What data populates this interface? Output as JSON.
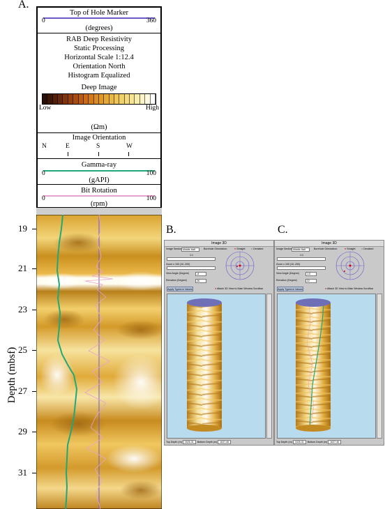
{
  "panel_a": {
    "letter": "A.",
    "top_of_hole": {
      "title": "Top of Hole Marker",
      "min": "0",
      "max": "360",
      "unit": "(degrees)"
    },
    "image_info": {
      "lines": [
        "RAB Deep Resistivity",
        "Static Processing",
        "Horizontal Scale 1:12.4",
        "Orientation North",
        "Histogram Equalized"
      ]
    },
    "deep_image": {
      "title": "Deep Image",
      "low": "Low",
      "high": "High",
      "unit": "(Ωm)"
    },
    "orientation": {
      "title": "Image Orientation",
      "letters": [
        "N",
        "E",
        "S",
        "W"
      ]
    },
    "gamma": {
      "title": "Gamma-ray",
      "min": "0",
      "max": "100",
      "unit": "(gAPI)",
      "color": "#21a77a"
    },
    "bit_rotation": {
      "title": "Bit Rotation",
      "min": "0",
      "max": "100",
      "unit": "(rpm)",
      "color": "#e8a2cf"
    },
    "depth_axis": {
      "label": "Depth (mbsf)",
      "ticks": [
        "19",
        "21",
        "23",
        "25",
        "27",
        "29",
        "31"
      ]
    }
  },
  "panel_b": {
    "letter": "B.",
    "window_title": "Image 3D",
    "image_section_label": "Image Section:",
    "image_section_value": "Middle Half",
    "orientation_label": "Borehole Orientation:",
    "opt_straight": "Straight",
    "opt_deviated": "Deviated",
    "slider_value": "1:1",
    "zoom_label": "Zoom x 100 (10..200)",
    "view_angle_label": "View Angle (Degree)",
    "view_angle_value": "-8",
    "elevation_label": "Elevation (Degree)",
    "elevation_value": "26",
    "apply_label": "Apply Typed-in Values",
    "attach_label": "Attach 3D View to Main Window Scrollbar",
    "top_depth_label": "Top Depth (m)",
    "top_depth_value": "1626.31",
    "bottom_depth_label": "Bottom Depth (m)",
    "bottom_depth_value": "1637.46"
  },
  "panel_c": {
    "letter": "C.",
    "window_title": "Image 3D",
    "image_section_label": "Image Section:",
    "image_section_value": "Middle Half",
    "orientation_label": "Borehole Orientation:",
    "opt_straight": "Straight",
    "opt_deviated": "Deviated",
    "slider_value": "1:1",
    "zoom_label": "Zoom x 100 (10..200)",
    "view_angle_label": "View Angle (Degree)",
    "view_angle_value": "1:5",
    "elevation_label": "Elevation (Degree)",
    "elevation_value": "22",
    "apply_label": "Apply Typed-in Values",
    "attach_label": "Attach 3D View to Main Window Scrollbar",
    "top_depth_label": "Top Depth (m)",
    "top_depth_value": "1626.31",
    "bottom_depth_label": "Bottom Depth (m)",
    "bottom_depth_value": "1637.46"
  },
  "colors": {
    "orientation_line": "#6a5acd",
    "accent_window": "#b8c7dd",
    "cylinder_top": "#6f6fb8"
  }
}
